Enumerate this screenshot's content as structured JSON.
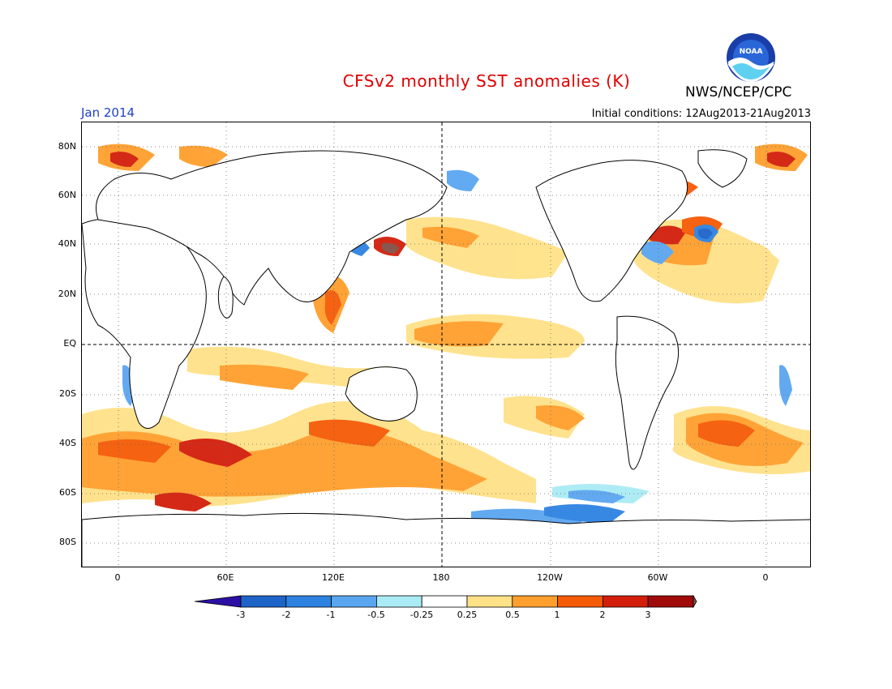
{
  "header": {
    "title": "CFSv2 monthly SST anomalies (K)",
    "agency": "NWS/NCEP/CPC",
    "logo_text": "NOAA",
    "month": "Jan 2014",
    "initial_conditions": "Initial conditions: 12Aug2013-21Aug2013"
  },
  "axes": {
    "lat_ticks": [
      "80N",
      "60N",
      "40N",
      "20N",
      "EQ",
      "20S",
      "40S",
      "60S",
      "80S"
    ],
    "lon_ticks": [
      "0",
      "60E",
      "120E",
      "180",
      "120W",
      "60W",
      "0"
    ]
  },
  "colorbar": {
    "labels": [
      "-3",
      "-2",
      "-1",
      "-0.5",
      "-0.25",
      "0.25",
      "0.5",
      "1",
      "2",
      "3"
    ],
    "colors": [
      "#2d0fa5",
      "#1e64c8",
      "#2d82e1",
      "#5aa5f0",
      "#aaebf5",
      "#ffffff",
      "#ffe187",
      "#ff9f2d",
      "#f55a05",
      "#d21e0a",
      "#a00a0a",
      "#825046"
    ]
  },
  "colors": {
    "title": "#e00000",
    "month": "#1f3fd0",
    "land_outline": "#000000"
  }
}
